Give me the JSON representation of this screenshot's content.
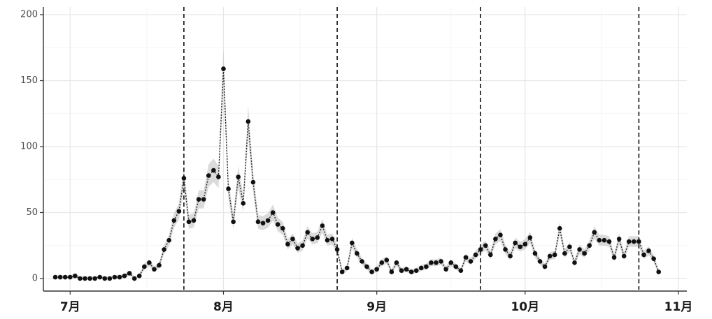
{
  "chart_data": {
    "type": "line",
    "title": "",
    "xlabel": "",
    "ylabel": "",
    "ylim": [
      0,
      200
    ],
    "yticks": [
      0,
      50,
      100,
      150,
      200
    ],
    "x_start": "2022-06-27",
    "x_end": "2022-11-01",
    "x_ticks": [
      {
        "date": "2022-07-01",
        "label": "7月"
      },
      {
        "date": "2022-08-01",
        "label": "8月"
      },
      {
        "date": "2022-09-01",
        "label": "9月"
      },
      {
        "date": "2022-10-01",
        "label": "10月"
      },
      {
        "date": "2022-11-01",
        "label": "11月"
      }
    ],
    "vertical_dashed_lines": [
      "2022-07-24",
      "2022-08-24",
      "2022-09-22",
      "2022-10-24"
    ],
    "grid": true,
    "series": [
      {
        "confidence_band": true,
        "start_date": "2022-06-28",
        "values": [
          1,
          1,
          1,
          1,
          2,
          0,
          0,
          0,
          0,
          1,
          0,
          0,
          1,
          1,
          2,
          4,
          0,
          2,
          9,
          12,
          7,
          10,
          22,
          29,
          44,
          51,
          76,
          43,
          44,
          60,
          60,
          78,
          82,
          77,
          159,
          68,
          43,
          77,
          57,
          119,
          73,
          43,
          42,
          44,
          50,
          41,
          38,
          26,
          30,
          23,
          25,
          35,
          30,
          31,
          40,
          29,
          30,
          22,
          5,
          8,
          27,
          19,
          13,
          9,
          5,
          7,
          12,
          14,
          5,
          12,
          6,
          7,
          5,
          6,
          8,
          9,
          12,
          12,
          13,
          7,
          12,
          9,
          6,
          16,
          13,
          18,
          22,
          25,
          18,
          30,
          33,
          22,
          17,
          27,
          24,
          26,
          31,
          19,
          13,
          9,
          17,
          18,
          38,
          19,
          24,
          12,
          22,
          19,
          25,
          35,
          29,
          29,
          28,
          16,
          30,
          17,
          28,
          28,
          28,
          18,
          21,
          15,
          5
        ]
      }
    ]
  }
}
